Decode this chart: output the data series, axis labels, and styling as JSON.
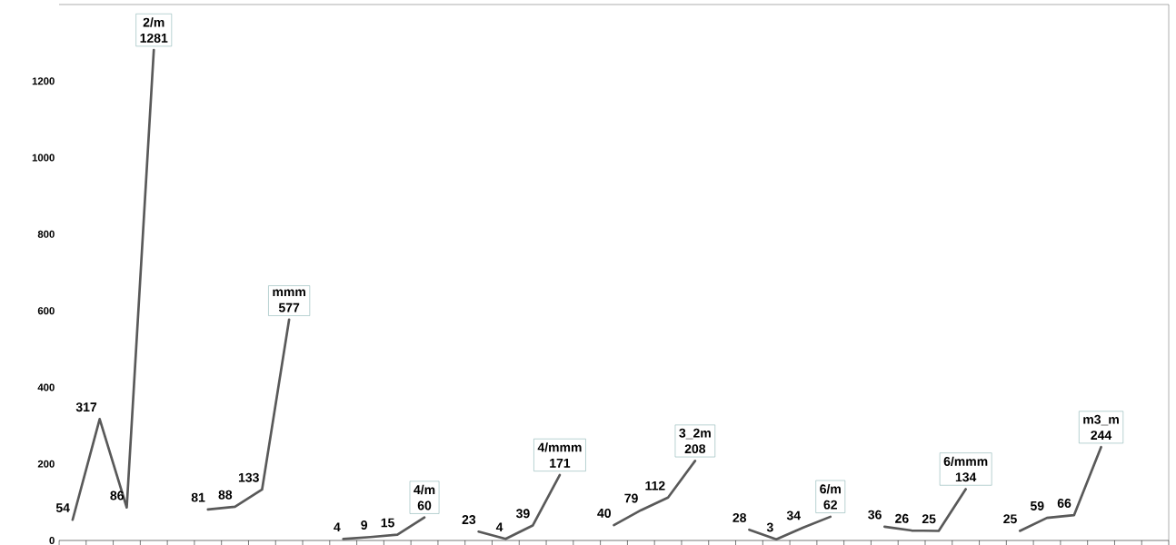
{
  "chart_data": {
    "type": "line",
    "categories": [
      null,
      null,
      null,
      null,
      null,
      null,
      null,
      null,
      null,
      null,
      null,
      null,
      null,
      null,
      null,
      null,
      null,
      null,
      null,
      null,
      null,
      null,
      null,
      null,
      null,
      null,
      null,
      null,
      null,
      null,
      null,
      null,
      null,
      null,
      null,
      null,
      null,
      null,
      null,
      null,
      null
    ],
    "series": [
      {
        "name": "2/m",
        "color": "#595959",
        "values": [
          54,
          317,
          86,
          1281,
          null,
          null,
          null,
          null,
          null,
          null,
          null,
          null,
          null,
          null,
          null,
          null,
          null,
          null,
          null,
          null,
          null,
          null,
          null,
          null,
          null,
          null,
          null,
          null,
          null,
          null,
          null,
          null,
          null,
          null,
          null,
          null,
          null,
          null,
          null,
          null,
          null
        ]
      },
      {
        "name": "mmm",
        "color": "#595959",
        "values": [
          null,
          null,
          null,
          null,
          null,
          81,
          88,
          133,
          577,
          null,
          null,
          null,
          null,
          null,
          null,
          null,
          null,
          null,
          null,
          null,
          null,
          null,
          null,
          null,
          null,
          null,
          null,
          null,
          null,
          null,
          null,
          null,
          null,
          null,
          null,
          null,
          null,
          null,
          null,
          null,
          null
        ]
      },
      {
        "name": "4/m",
        "color": "#595959",
        "values": [
          null,
          null,
          null,
          null,
          null,
          null,
          null,
          null,
          null,
          null,
          4,
          9,
          15,
          60,
          null,
          null,
          null,
          null,
          null,
          null,
          null,
          null,
          null,
          null,
          null,
          null,
          null,
          null,
          null,
          null,
          null,
          null,
          null,
          null,
          null,
          null,
          null,
          null,
          null,
          null,
          null
        ]
      },
      {
        "name": "4/mmm",
        "color": "#595959",
        "values": [
          null,
          null,
          null,
          null,
          null,
          null,
          null,
          null,
          null,
          null,
          null,
          null,
          null,
          null,
          null,
          23,
          4,
          39,
          171,
          null,
          null,
          null,
          null,
          null,
          null,
          null,
          null,
          null,
          null,
          null,
          null,
          null,
          null,
          null,
          null,
          null,
          null,
          null,
          null,
          null,
          null
        ]
      },
      {
        "name": "3_2m",
        "color": "#595959",
        "values": [
          null,
          null,
          null,
          null,
          null,
          null,
          null,
          null,
          null,
          null,
          null,
          null,
          null,
          null,
          null,
          null,
          null,
          null,
          null,
          null,
          40,
          79,
          112,
          208,
          null,
          null,
          null,
          null,
          null,
          null,
          null,
          null,
          null,
          null,
          null,
          null,
          null,
          null,
          null,
          null,
          null
        ]
      },
      {
        "name": "6/m",
        "color": "#595959",
        "values": [
          null,
          null,
          null,
          null,
          null,
          null,
          null,
          null,
          null,
          null,
          null,
          null,
          null,
          null,
          null,
          null,
          null,
          null,
          null,
          null,
          null,
          null,
          null,
          null,
          null,
          28,
          3,
          34,
          62,
          null,
          null,
          null,
          null,
          null,
          null,
          null,
          null,
          null,
          null,
          null,
          null
        ]
      },
      {
        "name": "6/mmm",
        "color": "#595959",
        "values": [
          null,
          null,
          null,
          null,
          null,
          null,
          null,
          null,
          null,
          null,
          null,
          null,
          null,
          null,
          null,
          null,
          null,
          null,
          null,
          null,
          null,
          null,
          null,
          null,
          null,
          null,
          null,
          null,
          null,
          null,
          36,
          26,
          25,
          134,
          null,
          null,
          null,
          null,
          null,
          null,
          null
        ]
      },
      {
        "name": "m3_m",
        "color": "#595959",
        "values": [
          null,
          null,
          null,
          null,
          null,
          null,
          null,
          null,
          null,
          null,
          null,
          null,
          null,
          null,
          null,
          null,
          null,
          null,
          null,
          null,
          null,
          null,
          null,
          null,
          null,
          null,
          null,
          null,
          null,
          null,
          null,
          null,
          null,
          null,
          null,
          25,
          59,
          66,
          244,
          null,
          null
        ]
      }
    ],
    "ylim": [
      0,
      1400
    ],
    "yticks": [
      0,
      200,
      400,
      600,
      800,
      1000,
      1200
    ],
    "data_labels": true
  }
}
